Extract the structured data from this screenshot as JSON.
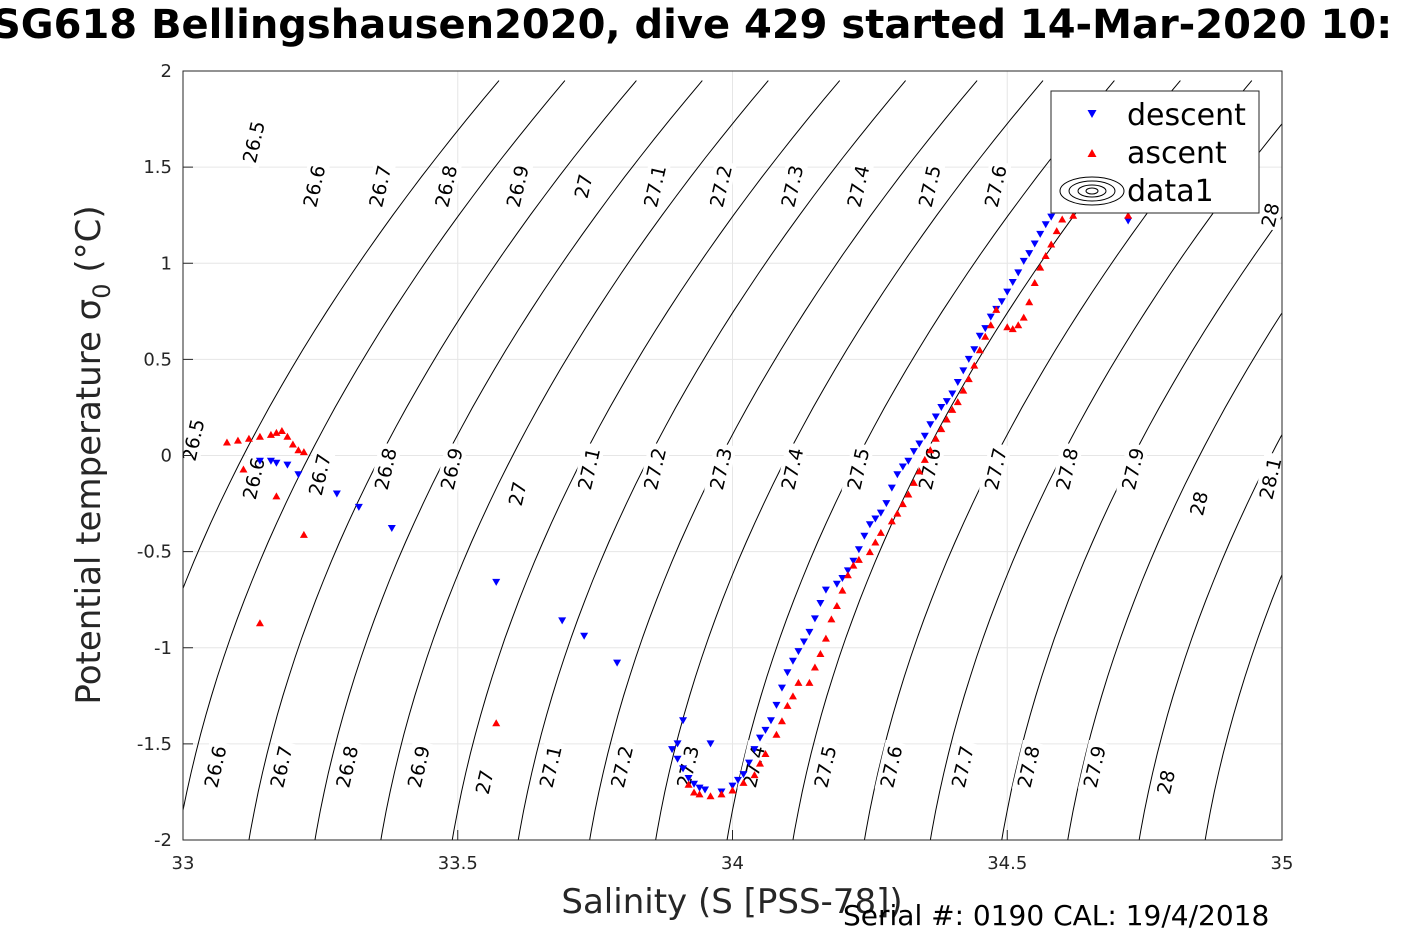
{
  "title": "SG618 Bellingshausen2020, dive 429 started 14-Mar-2020 10:",
  "footer": "Serial #: 0190  CAL: 19/4/2018",
  "chart_data": {
    "type": "scatter",
    "title": "SG618 Bellingshausen2020, dive 429 started 14-Mar-2020 10:",
    "xlabel": "Salinity (S [PSS-78])",
    "ylabel_main": "Potential temperature σ",
    "ylabel_sub": "0",
    "ylabel_unit": " (°C)",
    "xlim": [
      33,
      35
    ],
    "ylim": [
      -2,
      2
    ],
    "xticks": [
      33,
      33.5,
      34,
      34.5,
      35
    ],
    "xtick_labels": [
      "33",
      "33.5",
      "34",
      "34.5",
      "35"
    ],
    "yticks": [
      -2,
      -1.5,
      -1,
      -0.5,
      0,
      0.5,
      1,
      1.5,
      2
    ],
    "ytick_labels": [
      "-2",
      "-1.5",
      "-1",
      "-0.5",
      "0",
      "0.5",
      "1",
      "1.5",
      "2"
    ],
    "grid": true,
    "legend_position": "top-right",
    "contour_lines": [
      {
        "sigma": "26.5",
        "s_at_tmin": 32.87
      },
      {
        "sigma": "26.6",
        "s_at_tmin": 32.99
      },
      {
        "sigma": "26.7",
        "s_at_tmin": 33.12
      },
      {
        "sigma": "26.8",
        "s_at_tmin": 33.24
      },
      {
        "sigma": "26.9",
        "s_at_tmin": 33.36
      },
      {
        "sigma": "27",
        "s_at_tmin": 33.49
      },
      {
        "sigma": "27.1",
        "s_at_tmin": 33.61
      },
      {
        "sigma": "27.2",
        "s_at_tmin": 33.74
      },
      {
        "sigma": "27.3",
        "s_at_tmin": 33.86
      },
      {
        "sigma": "27.4",
        "s_at_tmin": 33.99
      },
      {
        "sigma": "27.5",
        "s_at_tmin": 34.11
      },
      {
        "sigma": "27.6",
        "s_at_tmin": 34.24
      },
      {
        "sigma": "27.7",
        "s_at_tmin": 34.36
      },
      {
        "sigma": "27.8",
        "s_at_tmin": 34.49
      },
      {
        "sigma": "27.9",
        "s_at_tmin": 34.61
      },
      {
        "sigma": "28",
        "s_at_tmin": 34.74
      },
      {
        "sigma": "28.1",
        "s_at_tmin": 34.86
      }
    ],
    "contour_labels": [
      {
        "text": "26.5",
        "s": 33.13,
        "t": 1.63
      },
      {
        "text": "26.6",
        "s": 33.24,
        "t": 1.4
      },
      {
        "text": "26.7",
        "s": 33.36,
        "t": 1.4
      },
      {
        "text": "26.8",
        "s": 33.48,
        "t": 1.4
      },
      {
        "text": "26.9",
        "s": 33.61,
        "t": 1.4
      },
      {
        "text": "27",
        "s": 33.73,
        "t": 1.4
      },
      {
        "text": "27.1",
        "s": 33.86,
        "t": 1.4
      },
      {
        "text": "27.2",
        "s": 33.98,
        "t": 1.4
      },
      {
        "text": "27.3",
        "s": 34.11,
        "t": 1.4
      },
      {
        "text": "27.4",
        "s": 34.23,
        "t": 1.4
      },
      {
        "text": "27.5",
        "s": 34.36,
        "t": 1.4
      },
      {
        "text": "27.6",
        "s": 34.48,
        "t": 1.4
      },
      {
        "text": "28",
        "s": 34.98,
        "t": 1.25
      },
      {
        "text": "26.5",
        "s": 33.02,
        "t": 0.08
      },
      {
        "text": "26.6",
        "s": 33.13,
        "t": -0.12
      },
      {
        "text": "26.7",
        "s": 33.25,
        "t": -0.1
      },
      {
        "text": "26.8",
        "s": 33.37,
        "t": -0.07
      },
      {
        "text": "26.9",
        "s": 33.49,
        "t": -0.07
      },
      {
        "text": "27",
        "s": 33.61,
        "t": -0.2
      },
      {
        "text": "27.1",
        "s": 33.74,
        "t": -0.07
      },
      {
        "text": "27.2",
        "s": 33.86,
        "t": -0.07
      },
      {
        "text": "27.3",
        "s": 33.98,
        "t": -0.07
      },
      {
        "text": "27.4",
        "s": 34.11,
        "t": -0.07
      },
      {
        "text": "27.5",
        "s": 34.23,
        "t": -0.07
      },
      {
        "text": "27.6",
        "s": 34.36,
        "t": -0.07
      },
      {
        "text": "27.7",
        "s": 34.48,
        "t": -0.07
      },
      {
        "text": "27.8",
        "s": 34.61,
        "t": -0.07
      },
      {
        "text": "27.9",
        "s": 34.73,
        "t": -0.07
      },
      {
        "text": "28",
        "s": 34.85,
        "t": -0.25
      },
      {
        "text": "28.1",
        "s": 34.98,
        "t": -0.12
      },
      {
        "text": "26.6",
        "s": 33.06,
        "t": -1.62
      },
      {
        "text": "26.7",
        "s": 33.18,
        "t": -1.62
      },
      {
        "text": "26.8",
        "s": 33.3,
        "t": -1.62
      },
      {
        "text": "26.9",
        "s": 33.43,
        "t": -1.62
      },
      {
        "text": "27",
        "s": 33.55,
        "t": -1.7
      },
      {
        "text": "27.1",
        "s": 33.67,
        "t": -1.62
      },
      {
        "text": "27.2",
        "s": 33.8,
        "t": -1.62
      },
      {
        "text": "27.3",
        "s": 33.92,
        "t": -1.62
      },
      {
        "text": "27.4",
        "s": 34.04,
        "t": -1.62
      },
      {
        "text": "27.5",
        "s": 34.17,
        "t": -1.62
      },
      {
        "text": "27.6",
        "s": 34.29,
        "t": -1.62
      },
      {
        "text": "27.7",
        "s": 34.42,
        "t": -1.62
      },
      {
        "text": "27.8",
        "s": 34.54,
        "t": -1.62
      },
      {
        "text": "27.9",
        "s": 34.66,
        "t": -1.62
      },
      {
        "text": "28",
        "s": 34.79,
        "t": -1.7
      }
    ],
    "series": [
      {
        "name": "descent",
        "color": "#0000ff",
        "marker": "triangle-down",
        "points": [
          [
            33.14,
            -0.03
          ],
          [
            33.16,
            -0.03
          ],
          [
            33.17,
            -0.04
          ],
          [
            33.19,
            -0.05
          ],
          [
            33.21,
            -0.1
          ],
          [
            33.28,
            -0.2
          ],
          [
            33.32,
            -0.27
          ],
          [
            33.38,
            -0.38
          ],
          [
            33.57,
            -0.66
          ],
          [
            33.69,
            -0.86
          ],
          [
            33.73,
            -0.94
          ],
          [
            33.79,
            -1.08
          ],
          [
            33.91,
            -1.38
          ],
          [
            33.9,
            -1.5
          ],
          [
            33.89,
            -1.53
          ],
          [
            33.9,
            -1.58
          ],
          [
            33.91,
            -1.63
          ],
          [
            33.92,
            -1.68
          ],
          [
            33.93,
            -1.71
          ],
          [
            33.94,
            -1.73
          ],
          [
            33.95,
            -1.74
          ],
          [
            33.96,
            -1.5
          ],
          [
            33.98,
            -1.75
          ],
          [
            34.0,
            -1.72
          ],
          [
            34.01,
            -1.69
          ],
          [
            34.02,
            -1.66
          ],
          [
            34.03,
            -1.6
          ],
          [
            34.04,
            -1.53
          ],
          [
            34.05,
            -1.47
          ],
          [
            34.06,
            -1.43
          ],
          [
            34.07,
            -1.38
          ],
          [
            34.08,
            -1.3
          ],
          [
            34.09,
            -1.21
          ],
          [
            34.1,
            -1.13
          ],
          [
            34.11,
            -1.07
          ],
          [
            34.12,
            -1.02
          ],
          [
            34.13,
            -0.97
          ],
          [
            34.14,
            -0.92
          ],
          [
            34.15,
            -0.85
          ],
          [
            34.16,
            -0.77
          ],
          [
            34.17,
            -0.7
          ],
          [
            34.19,
            -0.67
          ],
          [
            34.2,
            -0.64
          ],
          [
            34.21,
            -0.6
          ],
          [
            34.22,
            -0.55
          ],
          [
            34.23,
            -0.49
          ],
          [
            34.24,
            -0.42
          ],
          [
            34.25,
            -0.36
          ],
          [
            34.26,
            -0.33
          ],
          [
            34.27,
            -0.3
          ],
          [
            34.28,
            -0.25
          ],
          [
            34.29,
            -0.17
          ],
          [
            34.3,
            -0.1
          ],
          [
            34.31,
            -0.06
          ],
          [
            34.32,
            -0.03
          ],
          [
            34.33,
            0.02
          ],
          [
            34.34,
            0.06
          ],
          [
            34.35,
            0.1
          ],
          [
            34.36,
            0.16
          ],
          [
            34.37,
            0.2
          ],
          [
            34.38,
            0.25
          ],
          [
            34.39,
            0.28
          ],
          [
            34.4,
            0.32
          ],
          [
            34.41,
            0.38
          ],
          [
            34.42,
            0.44
          ],
          [
            34.43,
            0.5
          ],
          [
            34.44,
            0.55
          ],
          [
            34.45,
            0.62
          ],
          [
            34.46,
            0.66
          ],
          [
            34.47,
            0.72
          ],
          [
            34.48,
            0.76
          ],
          [
            34.49,
            0.8
          ],
          [
            34.5,
            0.85
          ],
          [
            34.51,
            0.9
          ],
          [
            34.52,
            0.95
          ],
          [
            34.53,
            1.01
          ],
          [
            34.54,
            1.05
          ],
          [
            34.55,
            1.1
          ],
          [
            34.56,
            1.15
          ],
          [
            34.57,
            1.2
          ],
          [
            34.58,
            1.24
          ],
          [
            34.59,
            1.28
          ],
          [
            34.6,
            1.33
          ],
          [
            34.61,
            1.37
          ],
          [
            34.72,
            1.22
          ]
        ]
      },
      {
        "name": "ascent",
        "color": "#ff0000",
        "marker": "triangle-up",
        "points": [
          [
            33.08,
            0.07
          ],
          [
            33.1,
            0.08
          ],
          [
            33.12,
            0.09
          ],
          [
            33.14,
            0.1
          ],
          [
            33.16,
            0.11
          ],
          [
            33.17,
            0.12
          ],
          [
            33.18,
            0.13
          ],
          [
            33.19,
            0.1
          ],
          [
            33.2,
            0.06
          ],
          [
            33.21,
            0.03
          ],
          [
            33.22,
            0.02
          ],
          [
            33.11,
            -0.07
          ],
          [
            33.17,
            -0.21
          ],
          [
            33.22,
            -0.41
          ],
          [
            33.14,
            -0.87
          ],
          [
            33.57,
            -1.39
          ],
          [
            33.92,
            -1.71
          ],
          [
            33.93,
            -1.75
          ],
          [
            33.94,
            -1.76
          ],
          [
            33.96,
            -1.77
          ],
          [
            33.98,
            -1.76
          ],
          [
            34.0,
            -1.74
          ],
          [
            34.02,
            -1.7
          ],
          [
            34.04,
            -1.66
          ],
          [
            34.05,
            -1.6
          ],
          [
            34.06,
            -1.55
          ],
          [
            34.08,
            -1.45
          ],
          [
            34.09,
            -1.38
          ],
          [
            34.1,
            -1.3
          ],
          [
            34.11,
            -1.25
          ],
          [
            34.12,
            -1.18
          ],
          [
            34.14,
            -1.18
          ],
          [
            34.15,
            -1.1
          ],
          [
            34.16,
            -1.03
          ],
          [
            34.17,
            -0.95
          ],
          [
            34.18,
            -0.85
          ],
          [
            34.19,
            -0.78
          ],
          [
            34.2,
            -0.7
          ],
          [
            34.21,
            -0.62
          ],
          [
            34.22,
            -0.57
          ],
          [
            34.23,
            -0.54
          ],
          [
            34.25,
            -0.5
          ],
          [
            34.26,
            -0.45
          ],
          [
            34.27,
            -0.4
          ],
          [
            34.29,
            -0.34
          ],
          [
            34.3,
            -0.3
          ],
          [
            34.31,
            -0.25
          ],
          [
            34.32,
            -0.2
          ],
          [
            34.33,
            -0.14
          ],
          [
            34.34,
            -0.08
          ],
          [
            34.35,
            -0.02
          ],
          [
            34.36,
            0.03
          ],
          [
            34.37,
            0.09
          ],
          [
            34.38,
            0.14
          ],
          [
            34.39,
            0.19
          ],
          [
            34.4,
            0.24
          ],
          [
            34.41,
            0.28
          ],
          [
            34.42,
            0.34
          ],
          [
            34.43,
            0.4
          ],
          [
            34.44,
            0.47
          ],
          [
            34.45,
            0.55
          ],
          [
            34.46,
            0.62
          ],
          [
            34.47,
            0.68
          ],
          [
            34.48,
            0.76
          ],
          [
            34.5,
            0.67
          ],
          [
            34.51,
            0.66
          ],
          [
            34.52,
            0.68
          ],
          [
            34.53,
            0.72
          ],
          [
            34.54,
            0.8
          ],
          [
            34.55,
            0.9
          ],
          [
            34.56,
            0.98
          ],
          [
            34.57,
            1.04
          ],
          [
            34.58,
            1.1
          ],
          [
            34.59,
            1.17
          ],
          [
            34.6,
            1.23
          ],
          [
            34.62,
            1.25
          ],
          [
            34.72,
            1.25
          ]
        ]
      },
      {
        "name": "data1",
        "color": "#000000",
        "marker": "contour"
      }
    ]
  }
}
